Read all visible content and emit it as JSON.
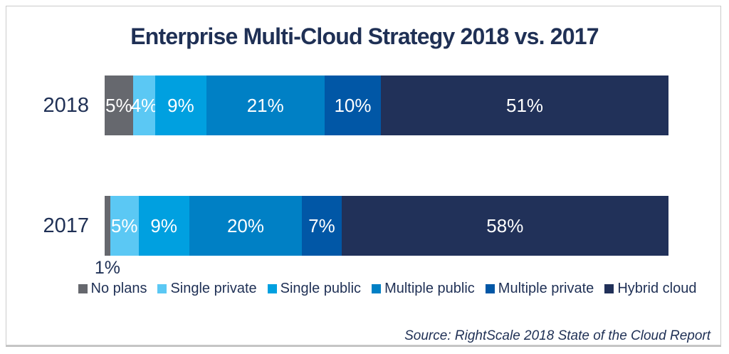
{
  "chart_data": {
    "type": "bar",
    "orientation": "horizontal-stacked",
    "title": "Enterprise Multi-Cloud Strategy 2018 vs. 2017",
    "categories": [
      "2018",
      "2017"
    ],
    "legend": [
      "No plans",
      "Single private",
      "Single public",
      "Multiple public",
      "Multiple private",
      "Hybrid cloud"
    ],
    "legend_position": "bottom",
    "colors": [
      "#66686e",
      "#5bc8f4",
      "#00a0e0",
      "#0080c5",
      "#0157a6",
      "#213159"
    ],
    "text_color": "#1f3055",
    "unit": "%",
    "xlim": [
      0,
      100
    ],
    "series": [
      {
        "name": "No plans",
        "values": [
          5,
          1
        ]
      },
      {
        "name": "Single private",
        "values": [
          4,
          5
        ]
      },
      {
        "name": "Single public",
        "values": [
          9,
          9
        ]
      },
      {
        "name": "Multiple public",
        "values": [
          21,
          20
        ]
      },
      {
        "name": "Multiple private",
        "values": [
          10,
          7
        ]
      },
      {
        "name": "Hybrid cloud",
        "values": [
          51,
          58
        ]
      }
    ],
    "rows": [
      {
        "label": "2018",
        "values": [
          5,
          4,
          9,
          21,
          10,
          51
        ],
        "inside_labels": [
          "5%",
          "4%",
          "9%",
          "21%",
          "10%",
          "51%"
        ]
      },
      {
        "label": "2017",
        "values": [
          1,
          5,
          9,
          20,
          7,
          58
        ],
        "inside_labels": [
          "",
          "5%",
          "9%",
          "20%",
          "7%",
          "58%"
        ],
        "outside_label": {
          "segment_index": 0,
          "text": "1%"
        }
      }
    ],
    "source": "Source: RightScale 2018 State of the Cloud Report"
  }
}
